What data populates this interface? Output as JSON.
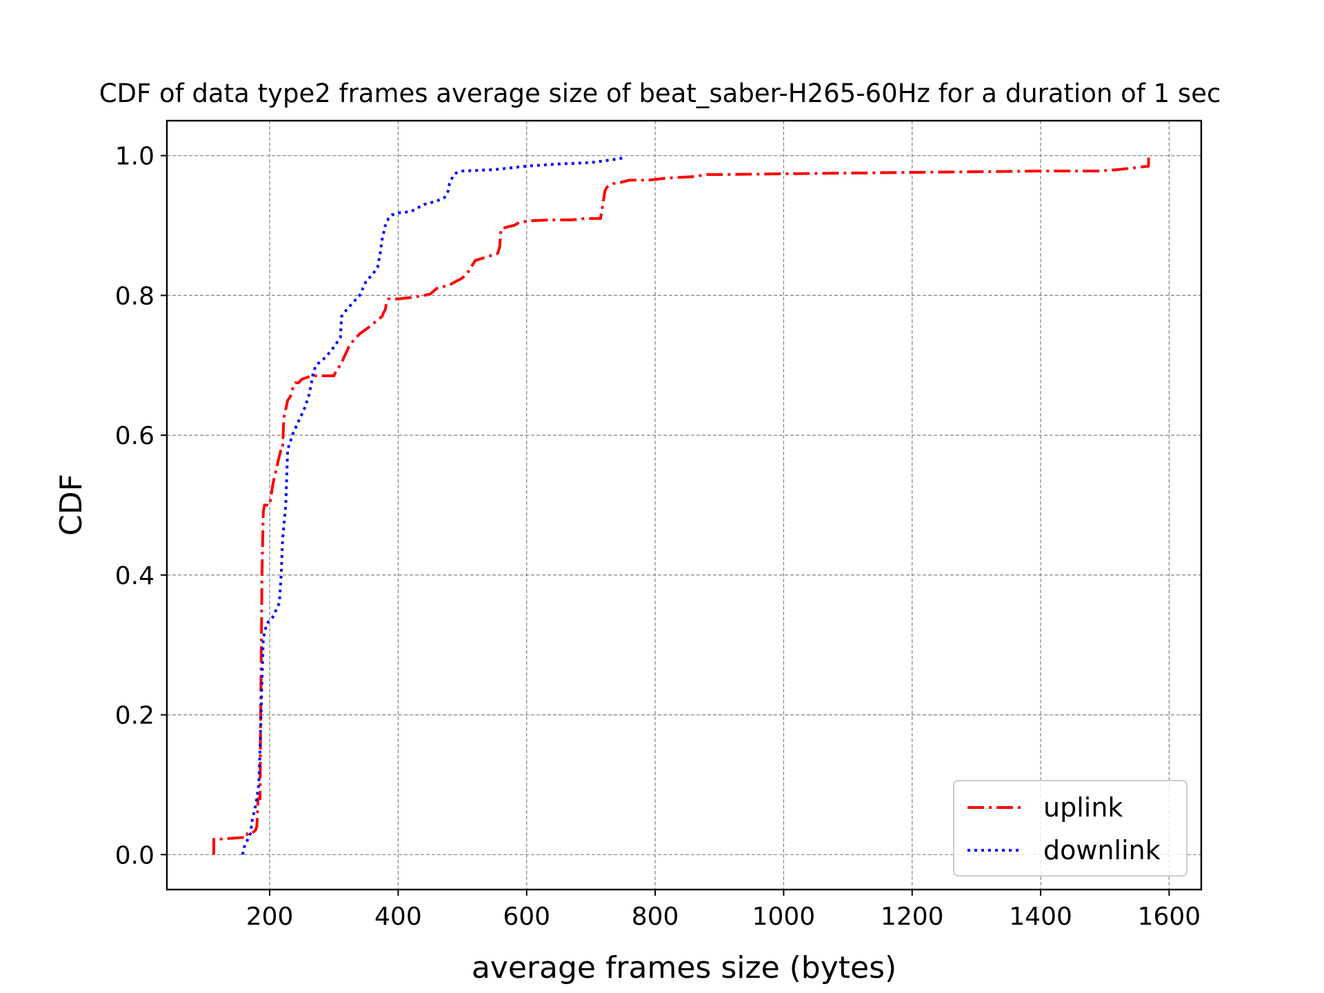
{
  "chart_data": {
    "type": "line",
    "title": "CDF of data type2 frames average size of beat_saber-H265-60Hz for a duration of 1 sec",
    "xlabel": "average frames size (bytes)",
    "ylabel": "CDF",
    "xlim": [
      40,
      1650
    ],
    "ylim": [
      -0.05,
      1.05
    ],
    "xticks": [
      200,
      400,
      600,
      800,
      1000,
      1200,
      1400,
      1600
    ],
    "xtick_labels": [
      "200",
      "400",
      "600",
      "800",
      "1000",
      "1200",
      "1400",
      "1600"
    ],
    "yticks": [
      0.0,
      0.2,
      0.4,
      0.6,
      0.8,
      1.0
    ],
    "ytick_labels": [
      "0.0",
      "0.2",
      "0.4",
      "0.6",
      "0.8",
      "1.0"
    ],
    "grid": true,
    "legend_position": "bottom-right",
    "series": [
      {
        "name": "uplink",
        "color": "#ff0000",
        "linestyle": "dashdot",
        "x": [
          113,
          113,
          120,
          165,
          165,
          172,
          178,
          180,
          182,
          185,
          186,
          187,
          188,
          190,
          191,
          192,
          195,
          200,
          205,
          210,
          215,
          218,
          220,
          222,
          228,
          232,
          237,
          240,
          245,
          250,
          265,
          275,
          300,
          305,
          310,
          315,
          320,
          325,
          330,
          340,
          355,
          368,
          375,
          377,
          380,
          382,
          385,
          390,
          395,
          400,
          420,
          440,
          450,
          460,
          480,
          500,
          510,
          520,
          555,
          558,
          560,
          570,
          580,
          590,
          610,
          640,
          670,
          690,
          715,
          722,
          725,
          735,
          748,
          760,
          790,
          820,
          860,
          880,
          900,
          1000,
          1100,
          1200,
          1300,
          1400,
          1490,
          1520,
          1550,
          1568,
          1568
        ],
        "y": [
          0.0,
          0.022,
          0.022,
          0.025,
          0.03,
          0.03,
          0.035,
          0.04,
          0.08,
          0.08,
          0.2,
          0.3,
          0.4,
          0.49,
          0.495,
          0.5,
          0.5,
          0.5,
          0.53,
          0.55,
          0.57,
          0.58,
          0.58,
          0.625,
          0.65,
          0.655,
          0.67,
          0.675,
          0.675,
          0.68,
          0.685,
          0.685,
          0.685,
          0.695,
          0.7,
          0.71,
          0.72,
          0.73,
          0.735,
          0.745,
          0.755,
          0.765,
          0.77,
          0.775,
          0.78,
          0.79,
          0.795,
          0.795,
          0.795,
          0.795,
          0.797,
          0.8,
          0.802,
          0.81,
          0.815,
          0.825,
          0.835,
          0.85,
          0.86,
          0.87,
          0.895,
          0.898,
          0.9,
          0.905,
          0.907,
          0.908,
          0.908,
          0.91,
          0.91,
          0.95,
          0.955,
          0.96,
          0.962,
          0.965,
          0.965,
          0.968,
          0.97,
          0.973,
          0.973,
          0.974,
          0.975,
          0.976,
          0.977,
          0.978,
          0.978,
          0.98,
          0.983,
          0.985,
          1.0
        ]
      },
      {
        "name": "downlink",
        "color": "#0000ff",
        "linestyle": "dotted",
        "x": [
          158,
          160,
          165,
          170,
          173,
          178,
          180,
          183,
          185,
          188,
          190,
          193,
          195,
          200,
          205,
          210,
          215,
          218,
          220,
          225,
          228,
          232,
          235,
          240,
          245,
          250,
          255,
          262,
          268,
          272,
          285,
          295,
          303,
          310,
          312,
          320,
          330,
          340,
          350,
          360,
          368,
          372,
          375,
          380,
          385,
          390,
          400,
          420,
          440,
          460,
          472,
          478,
          480,
          485,
          490,
          500,
          550,
          600,
          650,
          700,
          740,
          752
        ],
        "y": [
          0.0,
          0.01,
          0.02,
          0.03,
          0.05,
          0.07,
          0.08,
          0.1,
          0.15,
          0.25,
          0.31,
          0.32,
          0.33,
          0.335,
          0.34,
          0.35,
          0.36,
          0.4,
          0.45,
          0.5,
          0.58,
          0.59,
          0.6,
          0.61,
          0.62,
          0.63,
          0.64,
          0.66,
          0.69,
          0.7,
          0.71,
          0.72,
          0.73,
          0.74,
          0.77,
          0.78,
          0.79,
          0.8,
          0.82,
          0.83,
          0.84,
          0.86,
          0.88,
          0.9,
          0.91,
          0.915,
          0.918,
          0.92,
          0.93,
          0.935,
          0.94,
          0.95,
          0.96,
          0.97,
          0.975,
          0.978,
          0.98,
          0.985,
          0.988,
          0.99,
          0.995,
          0.997
        ]
      }
    ]
  }
}
